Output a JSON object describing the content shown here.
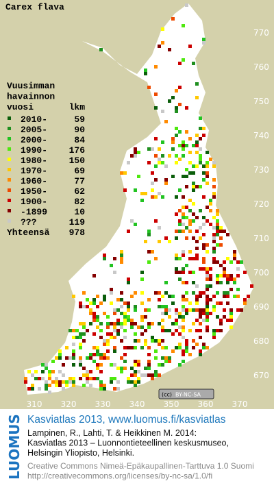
{
  "title": "Carex flava",
  "legend": {
    "heading": [
      "Vuusimman",
      "havainnon",
      "vuosi"
    ],
    "count_heading": "lkm",
    "rows": [
      {
        "label": "2010-",
        "count": 59,
        "color": "#0b5e0b"
      },
      {
        "label": "2005-",
        "count": 90,
        "color": "#1f8f1f"
      },
      {
        "label": "2000-",
        "count": 84,
        "color": "#22c322"
      },
      {
        "label": "1990-",
        "count": 176,
        "color": "#4ee80e"
      },
      {
        "label": "1980-",
        "count": 150,
        "color": "#ffff00"
      },
      {
        "label": "1970-",
        "count": 69,
        "color": "#ffc800"
      },
      {
        "label": "1960-",
        "count": 77,
        "color": "#ff8a00"
      },
      {
        "label": "1950-",
        "count": 62,
        "color": "#ee4a00"
      },
      {
        "label": "1900-",
        "count": 82,
        "color": "#cc0000"
      },
      {
        "label": "-1899",
        "count": 10,
        "color": "#850000"
      },
      {
        "label": "???",
        "count": 119,
        "color": "#c8c8c8"
      }
    ],
    "total": {
      "label": "Yhteensä",
      "count": 978
    }
  },
  "north_labels": [
    770,
    760,
    750,
    740,
    730,
    720,
    710,
    700,
    690,
    680,
    670
  ],
  "east_labels": [
    310,
    320,
    330,
    340,
    350,
    360,
    370
  ],
  "license_badge": "BY-NC-SA",
  "footer": {
    "logo": "LUOMUS",
    "link": "Kasviatlas 2013, www.luomus.fi/kasviatlas",
    "citation": [
      "Lampinen, R., Lahti, T. & Heikkinen M. 2014:",
      "Kasviatlas 2013 – Luonnontieteellinen keskusmuseo,",
      "Helsingin Yliopisto, Helsinki."
    ],
    "license": [
      "Creative Commons Nimeä-Epäkaupallinen-Tarttuva 1.0 Suomi",
      "http://creativecommons.org/licenses/by-nc-sa/1.0/fi"
    ]
  }
}
